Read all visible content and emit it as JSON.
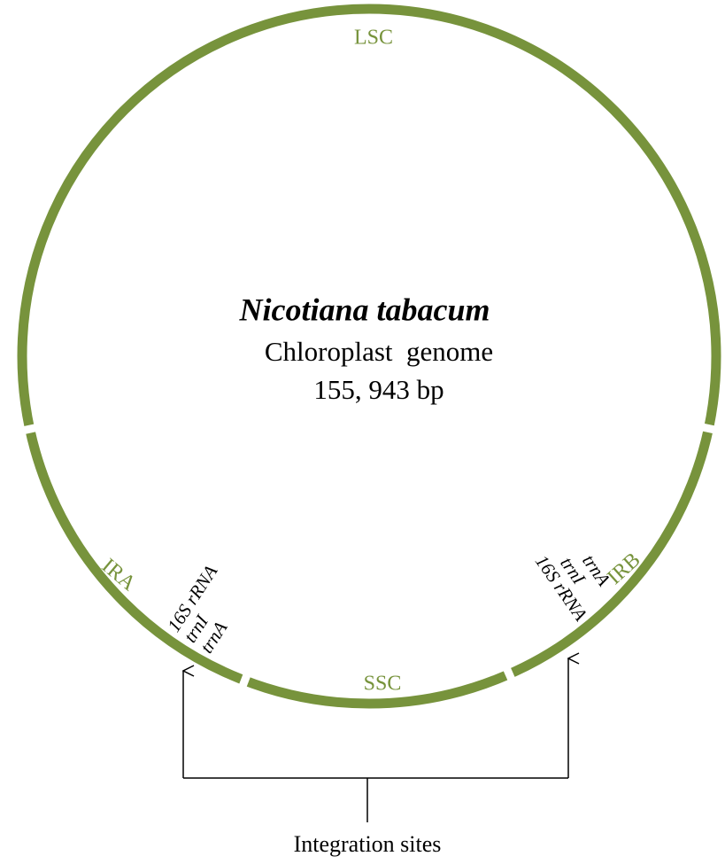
{
  "center": {
    "organism": "Nicotiana tabacum",
    "description": "Chloroplast  genome",
    "size": "155, 943 bp"
  },
  "regions": {
    "lsc": "LSC",
    "ira": "IRA",
    "irb": "IRB",
    "ssc": "SSC"
  },
  "genes_left": [
    "16S rRNA",
    "trnI",
    "trnA"
  ],
  "genes_right": [
    "16S rRNA",
    "trnI",
    "trnA"
  ],
  "footer": "Integration sites"
}
